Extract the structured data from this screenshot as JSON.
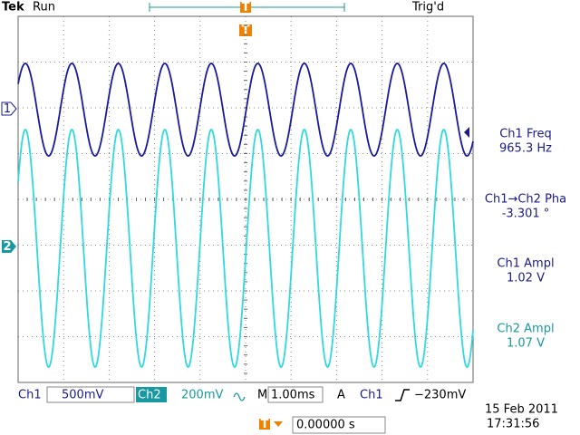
{
  "header": {
    "brand": "Tek",
    "status": "Run",
    "trigger_state": "Trig'd",
    "trigger_marker": "T"
  },
  "channel_markers": [
    "1",
    "2"
  ],
  "measurements": [
    {
      "label": "Ch1 Freq",
      "value": "965.3 Hz"
    },
    {
      "label": "Ch1→Ch2 Pha",
      "value": "-3.301 °"
    },
    {
      "label": "Ch1 Ampl",
      "value": "1.02 V"
    },
    {
      "label": "Ch2 Ampl",
      "value": "1.07 V"
    }
  ],
  "status_bar": {
    "ch1_label": "Ch1",
    "ch1_scale": "500mV",
    "ch2_label": "Ch2",
    "ch2_scale": "200mV",
    "timebase_label": "M",
    "timebase": "1.00ms",
    "trigger_mode": "A",
    "trigger_source": "Ch1",
    "trigger_level": "−230mV"
  },
  "timestamp": {
    "date": "15 Feb 2011",
    "time": "17:31:56"
  },
  "horizontal_position": {
    "marker": "T",
    "value": "0.00000 s"
  }
}
